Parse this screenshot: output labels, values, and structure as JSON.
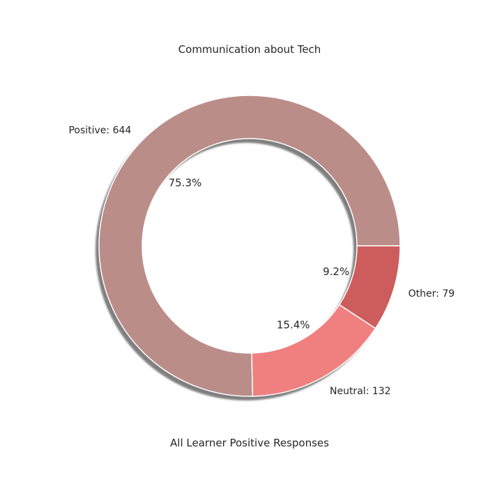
{
  "chart_data": {
    "type": "pie",
    "variant": "donut",
    "title": "Communication about Tech",
    "xlabel": "All Learner Positive Responses",
    "categories": [
      "Positive",
      "Neutral",
      "Other"
    ],
    "values": [
      644,
      132,
      79
    ],
    "slice_labels": [
      "Positive: 644",
      "Neutral: 132",
      "Other: 79"
    ],
    "percent_labels": [
      "75.3%",
      "15.4%",
      "9.2%"
    ],
    "colors": [
      "#bb8d89",
      "#f08080",
      "#cd5c5c"
    ],
    "shadow": true,
    "start_angle": 0,
    "direction": "counterclockwise"
  }
}
